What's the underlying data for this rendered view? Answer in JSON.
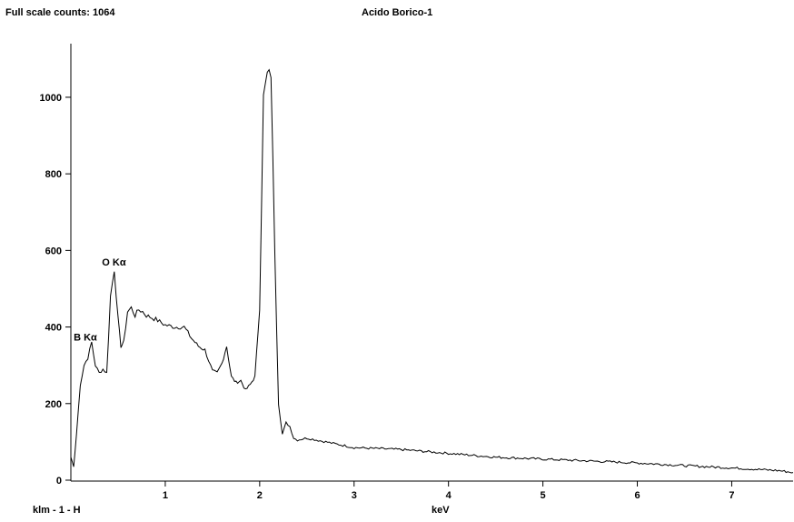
{
  "header": {
    "full_scale": "Full scale counts: 1064",
    "title": "Acido Borico-1"
  },
  "footer": {
    "id": "klm - 1 - H"
  },
  "chart_data": {
    "type": "line",
    "title": "Acido Borico-1",
    "xlabel": "keV",
    "ylabel": "",
    "xlim": [
      0,
      7.65
    ],
    "ylim": [
      0,
      1140
    ],
    "x_ticks": [
      1,
      2,
      3,
      4,
      5,
      6,
      7
    ],
    "y_ticks": [
      0,
      200,
      400,
      600,
      800,
      1000
    ],
    "grid": false,
    "annotations": [
      {
        "text": "B Kα",
        "x": 0.03,
        "y": 365
      },
      {
        "text": "O Kα",
        "x": 0.33,
        "y": 560
      }
    ],
    "series": [
      {
        "x": [
          0.0,
          0.03,
          0.06,
          0.1,
          0.14,
          0.18,
          0.22,
          0.26,
          0.3,
          0.34,
          0.38,
          0.42,
          0.46,
          0.5,
          0.53,
          0.56,
          0.6,
          0.64,
          0.68,
          0.72,
          0.76,
          0.8,
          0.9,
          1.0,
          1.1,
          1.2,
          1.28,
          1.35,
          1.42,
          1.5,
          1.55,
          1.6,
          1.65,
          1.7,
          1.75,
          1.8,
          1.85,
          1.9,
          1.95,
          2.0,
          2.04,
          2.08,
          2.12,
          2.16,
          2.2,
          2.24,
          2.28,
          2.32,
          2.36,
          2.4,
          2.5,
          2.7,
          2.9,
          3.0,
          3.5,
          4.0,
          4.5,
          5.0,
          5.5,
          6.0,
          6.5,
          7.0,
          7.5,
          7.65
        ],
        "y": [
          60,
          35,
          120,
          250,
          300,
          320,
          360,
          300,
          280,
          290,
          280,
          480,
          550,
          420,
          350,
          360,
          440,
          450,
          430,
          445,
          440,
          430,
          420,
          405,
          400,
          400,
          370,
          350,
          340,
          285,
          280,
          305,
          350,
          270,
          255,
          260,
          235,
          250,
          270,
          450,
          1000,
          1060,
          1060,
          600,
          200,
          120,
          150,
          140,
          110,
          105,
          110,
          100,
          90,
          85,
          80,
          70,
          60,
          55,
          50,
          45,
          38,
          32,
          25,
          20
        ]
      }
    ]
  }
}
